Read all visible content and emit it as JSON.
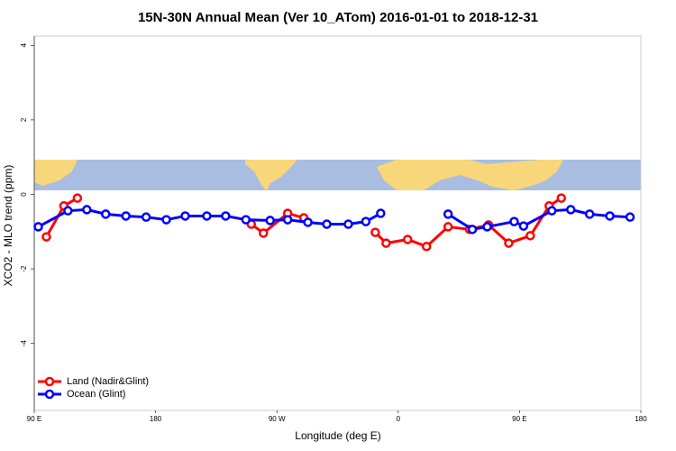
{
  "chart_data": {
    "type": "line",
    "title": "15N-30N Annual Mean (Ver 10_ATom)   2016-01-01 to 2018-12-31",
    "x_label": "Longitude (deg E)",
    "y_label": "XCO2 - MLO trend (ppm)",
    "xlim": [
      90,
      540
    ],
    "ylim": [
      -5.8,
      4.25
    ],
    "xticks": [
      {
        "value": 90,
        "label": "90 E"
      },
      {
        "value": 180,
        "label": "180"
      },
      {
        "value": 270,
        "label": "90 W"
      },
      {
        "value": 360,
        "label": "0"
      },
      {
        "value": 450,
        "label": "90 E"
      },
      {
        "value": 540,
        "label": "180"
      }
    ],
    "yticks": [
      -4,
      -2,
      0,
      2,
      4
    ],
    "legend": "bottomleft",
    "series": [
      {
        "name": "Land (Nadir&Glint)",
        "color": "#ff0000",
        "x": [
          99,
          112,
          122,
          null,
          251,
          260,
          278,
          290,
          null,
          343,
          351,
          367,
          381,
          397,
          413,
          427,
          442,
          458,
          472,
          481
        ],
        "values": [
          -1.14,
          -0.31,
          -0.1,
          null,
          -0.8,
          -1.04,
          -0.51,
          -0.63,
          null,
          -1.02,
          -1.31,
          -1.21,
          -1.4,
          -0.87,
          -0.94,
          -0.82,
          -1.31,
          -1.11,
          -0.31,
          -0.1
        ]
      },
      {
        "name": "Ocean (Glint)",
        "color": "#0000ff",
        "x": [
          93,
          115,
          129,
          143,
          158,
          173,
          188,
          202,
          218,
          232,
          247,
          265,
          278,
          293,
          307,
          323,
          336,
          347,
          null,
          397,
          415,
          426,
          446,
          453,
          474,
          488,
          502,
          517,
          532
        ],
        "values": [
          -0.87,
          -0.44,
          -0.41,
          -0.53,
          -0.58,
          -0.61,
          -0.68,
          -0.58,
          -0.58,
          -0.58,
          -0.68,
          -0.7,
          -0.68,
          -0.75,
          -0.8,
          -0.8,
          -0.73,
          -0.51,
          null,
          -0.53,
          -0.94,
          -0.87,
          -0.73,
          -0.85,
          -0.44,
          -0.41,
          -0.53,
          -0.58,
          -0.61
        ]
      }
    ]
  }
}
